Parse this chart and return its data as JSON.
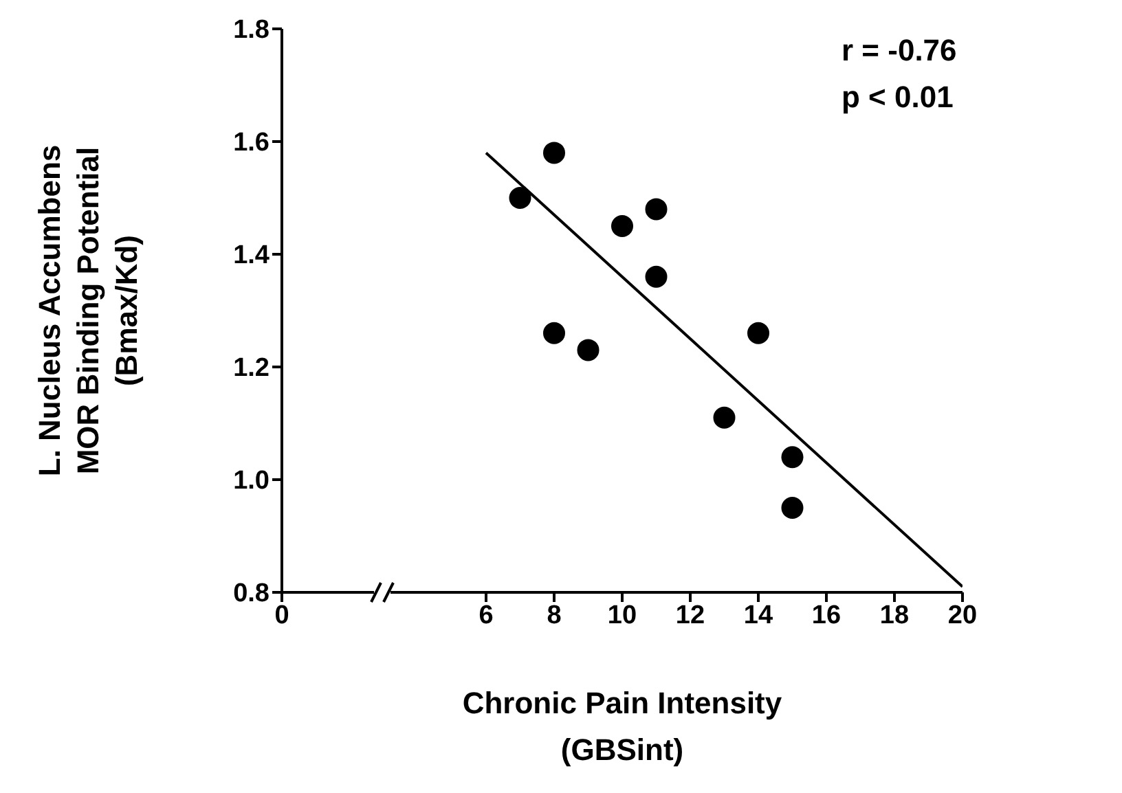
{
  "chart_data": {
    "type": "scatter",
    "xlabel": "Chronic Pain Intensity\n(GBSint)",
    "ylabel": "L. Nucleus Accumbens\nMOR Binding Potential\n(Bmax/Kd)",
    "annotations": [
      "r = -0.76",
      "p < 0.01"
    ],
    "xlim": [
      0,
      20
    ],
    "xticks": [
      0,
      6,
      8,
      10,
      12,
      14,
      16,
      18,
      20
    ],
    "ylim": [
      0.8,
      1.8
    ],
    "yticks": [
      {
        "value": 0.8,
        "label": "0.8"
      },
      {
        "value": 1.0,
        "label": "1.0"
      },
      {
        "value": 1.2,
        "label": "1.2"
      },
      {
        "value": 1.4,
        "label": "1.4"
      },
      {
        "value": 1.6,
        "label": "1.6"
      },
      {
        "value": 1.8,
        "label": "1.8"
      }
    ],
    "grid": false,
    "legend": false,
    "series": [
      {
        "marker": "circle",
        "color": "#000000",
        "x": [
          7,
          8,
          8,
          9,
          10,
          11,
          11,
          13,
          14,
          15,
          15
        ],
        "values": [
          1.5,
          1.58,
          1.26,
          1.23,
          1.45,
          1.48,
          1.36,
          1.11,
          1.26,
          1.04,
          0.95
        ]
      },
      {
        "type": "line",
        "marker": "none",
        "color": "#000000",
        "x": [
          6,
          20
        ],
        "values": [
          1.58,
          0.81
        ]
      }
    ]
  }
}
